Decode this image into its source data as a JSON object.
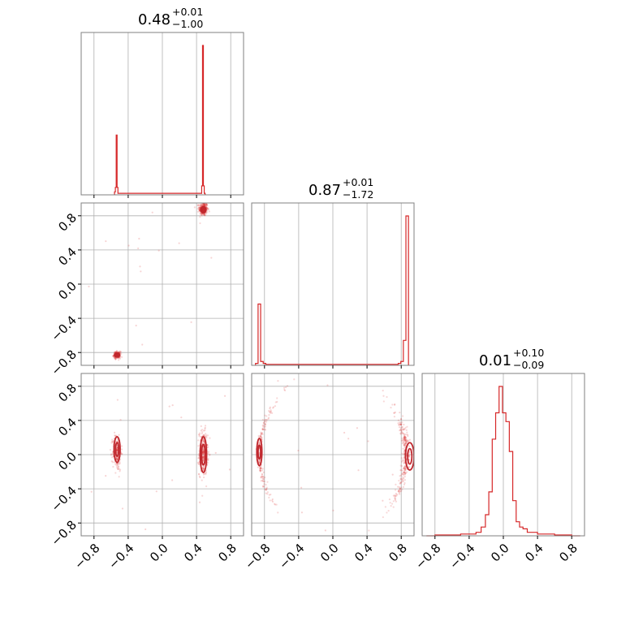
{
  "figure": {
    "type": "corner-plot",
    "n_parameters": 3
  },
  "colors": {
    "hist": "#d62728",
    "points": "#d62728",
    "contour": "#c0272d",
    "grid": "#b0b0b0",
    "frame": "#808080"
  },
  "chart_data": {
    "type": "corner",
    "axis_range": [
      -0.95,
      0.95
    ],
    "tick_values": [
      -0.8,
      -0.4,
      0.0,
      0.4,
      0.8
    ],
    "tick_labels": [
      "−0.8",
      "−0.4",
      "0.0",
      "0.4",
      "0.8"
    ],
    "parameters": [
      {
        "median": "0.48",
        "upper": "+0.01",
        "lower": "−1.00",
        "hist": {
          "bins": [
            [
              -0.555,
              0.02
            ],
            [
              -0.545,
              0.05
            ],
            [
              -0.535,
              0.4
            ],
            [
              -0.525,
              0.05
            ],
            [
              -0.515,
              0.01
            ],
            [
              0.455,
              0.01
            ],
            [
              0.465,
              0.06
            ],
            [
              0.475,
              1.0
            ],
            [
              0.485,
              0.06
            ],
            [
              0.495,
              0.01
            ]
          ]
        }
      },
      {
        "median": "0.87",
        "upper": "+0.01",
        "lower": "−1.72",
        "hist": {
          "bins": [
            [
              -0.89,
              0.01
            ],
            [
              -0.86,
              0.32
            ],
            [
              -0.83,
              0.02
            ],
            [
              -0.8,
              0.01
            ],
            [
              -0.77,
              0.005
            ],
            [
              -0.74,
              0.005
            ],
            [
              0.75,
              0.005
            ],
            [
              0.78,
              0.01
            ],
            [
              0.81,
              0.02
            ],
            [
              0.84,
              0.13
            ],
            [
              0.87,
              0.78
            ]
          ]
        }
      },
      {
        "median": "0.01",
        "upper": "+0.10",
        "lower": "−0.09",
        "hist": {
          "bins": [
            [
              -0.85,
              0.0
            ],
            [
              -0.75,
              0.005
            ],
            [
              -0.65,
              0.005
            ],
            [
              -0.55,
              0.005
            ],
            [
              -0.45,
              0.01
            ],
            [
              -0.35,
              0.01
            ],
            [
              -0.29,
              0.02
            ],
            [
              -0.23,
              0.05
            ],
            [
              -0.19,
              0.12
            ],
            [
              -0.15,
              0.25
            ],
            [
              -0.11,
              0.55
            ],
            [
              -0.07,
              0.7
            ],
            [
              -0.03,
              0.85
            ],
            [
              0.01,
              0.7
            ],
            [
              0.05,
              0.65
            ],
            [
              0.09,
              0.48
            ],
            [
              0.13,
              0.2
            ],
            [
              0.17,
              0.08
            ],
            [
              0.21,
              0.05
            ],
            [
              0.25,
              0.04
            ],
            [
              0.31,
              0.02
            ],
            [
              0.37,
              0.02
            ],
            [
              0.43,
              0.01
            ],
            [
              0.49,
              0.01
            ],
            [
              0.55,
              0.01
            ],
            [
              0.65,
              0.005
            ],
            [
              0.75,
              0.005
            ],
            [
              0.85,
              0.0
            ]
          ]
        }
      }
    ],
    "pairs": [
      {
        "x": 0,
        "y": 1,
        "clusters": [
          {
            "cx": 0.48,
            "cy": 0.88,
            "sx": 0.025,
            "sy": 0.04,
            "w": 0.58
          },
          {
            "cx": -0.53,
            "cy": -0.83,
            "sx": 0.02,
            "sy": 0.02,
            "w": 0.4
          }
        ],
        "contours": [
          {
            "cx": 0.48,
            "cy": 0.87,
            "rx": 0.03,
            "ry": 0.035
          },
          {
            "cx": 0.48,
            "cy": 0.87,
            "rx": 0.015,
            "ry": 0.018
          },
          {
            "cx": -0.53,
            "cy": -0.83,
            "rx": 0.03,
            "ry": 0.022
          },
          {
            "cx": -0.53,
            "cy": -0.83,
            "rx": 0.015,
            "ry": 0.01
          }
        ]
      },
      {
        "x": 0,
        "y": 2,
        "clusters": [
          {
            "cx": 0.48,
            "cy": 0.02,
            "sx": 0.025,
            "sy": 0.13,
            "w": 0.58
          },
          {
            "cx": -0.53,
            "cy": 0.03,
            "sx": 0.025,
            "sy": 0.11,
            "w": 0.4
          }
        ],
        "contours": [
          {
            "cx": 0.48,
            "cy": 0.0,
            "rx": 0.038,
            "ry": 0.21
          },
          {
            "cx": 0.48,
            "cy": 0.0,
            "rx": 0.022,
            "ry": 0.12
          },
          {
            "cx": -0.53,
            "cy": 0.06,
            "rx": 0.036,
            "ry": 0.15
          },
          {
            "cx": -0.53,
            "cy": 0.06,
            "rx": 0.018,
            "ry": 0.08
          }
        ]
      },
      {
        "x": 1,
        "y": 2,
        "clusters": [
          {
            "cx": 0.86,
            "cy": 0.0,
            "sx": 0.06,
            "sy": 0.15,
            "w": 0.58,
            "arc": 1
          },
          {
            "cx": -0.86,
            "cy": 0.02,
            "sx": 0.04,
            "sy": 0.12,
            "w": 0.4,
            "arc": -1
          }
        ],
        "contours": [
          {
            "cx": 0.9,
            "cy": -0.02,
            "rx": 0.05,
            "ry": 0.16
          },
          {
            "cx": 0.9,
            "cy": -0.02,
            "rx": 0.025,
            "ry": 0.09
          },
          {
            "cx": -0.86,
            "cy": 0.03,
            "rx": 0.03,
            "ry": 0.16
          },
          {
            "cx": -0.86,
            "cy": 0.03,
            "rx": 0.015,
            "ry": 0.08
          }
        ]
      }
    ]
  }
}
